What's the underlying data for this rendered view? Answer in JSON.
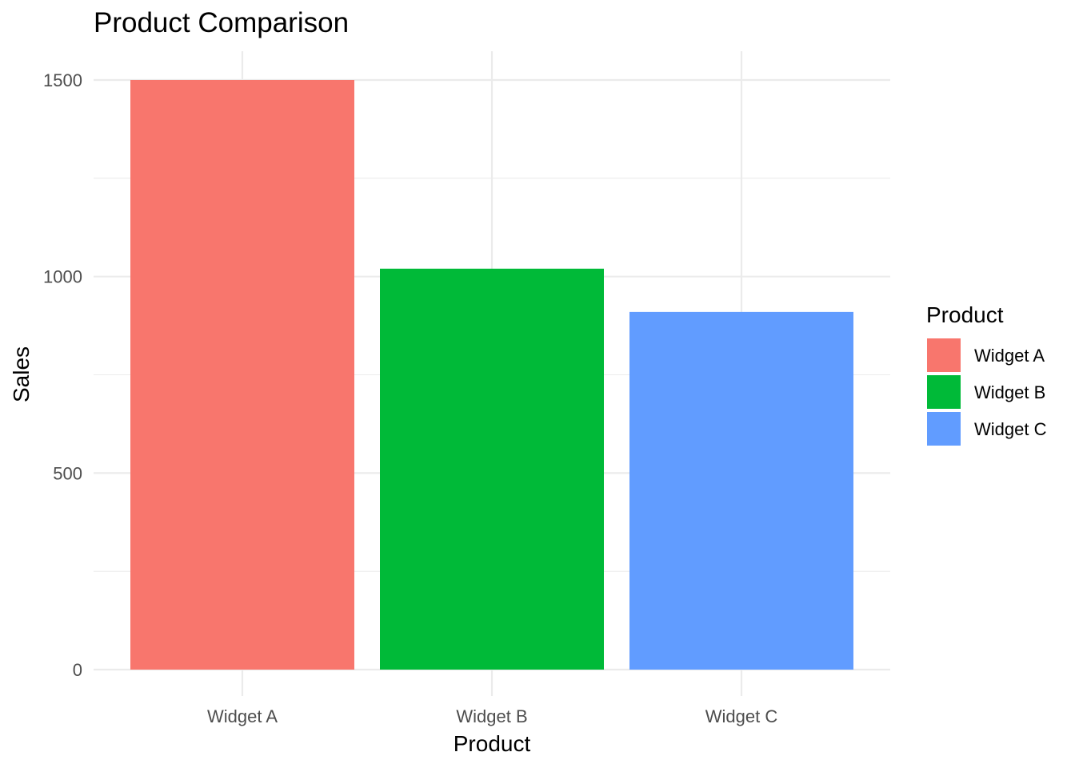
{
  "chart_data": {
    "type": "bar",
    "title": "Product Comparison",
    "xlabel": "Product",
    "ylabel": "Sales",
    "categories": [
      "Widget A",
      "Widget B",
      "Widget C"
    ],
    "values": [
      1500,
      1020,
      910
    ],
    "colors": [
      "#F8766D",
      "#00BA38",
      "#619CFF"
    ],
    "ylim": [
      0,
      1500
    ],
    "yticks": [
      0,
      500,
      1000,
      1500
    ],
    "ytick_labels": [
      "0",
      "500",
      "1000",
      "1500"
    ],
    "grid": true,
    "legend": {
      "title": "Product",
      "position": "right",
      "entries": [
        "Widget A",
        "Widget B",
        "Widget C"
      ]
    }
  }
}
